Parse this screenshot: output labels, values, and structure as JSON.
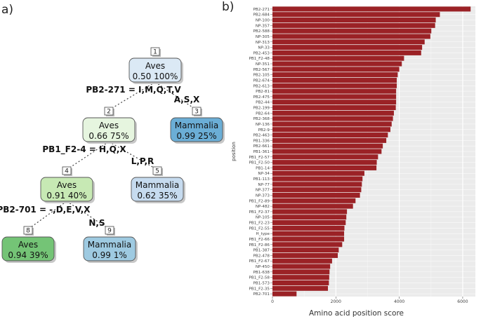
{
  "panels": {
    "a": "a)",
    "b": "b)"
  },
  "tree": {
    "nodes": [
      {
        "id": "1",
        "cls": "Aves",
        "prob": "0.50",
        "pct": "100%",
        "color": "#dbe9f5"
      },
      {
        "id": "2",
        "cls": "Aves",
        "prob": "0.66",
        "pct": "75%",
        "color": "#e6f5df"
      },
      {
        "id": "3",
        "cls": "Mammalia",
        "prob": "0.99",
        "pct": "25%",
        "color": "#6baed6"
      },
      {
        "id": "4",
        "cls": "Aves",
        "prob": "0.91",
        "pct": "40%",
        "color": "#c7e9b4"
      },
      {
        "id": "5",
        "cls": "Mammalia",
        "prob": "0.62",
        "pct": "35%",
        "color": "#c6dbef"
      },
      {
        "id": "8",
        "cls": "Aves",
        "prob": "0.94",
        "pct": "39%",
        "color": "#74c476"
      },
      {
        "id": "9",
        "cls": "Mammalia",
        "prob": "0.99",
        "pct": "1%",
        "color": "#9ecae1"
      }
    ],
    "splits": [
      {
        "left": "PB2-271 = I,M,Q,T,V",
        "right": "A,S,X"
      },
      {
        "left": "PB1_F2-4 = H,Q,X",
        "right": "L,P,R"
      },
      {
        "left": "PB2-701 = -,D,E,V,X",
        "right": "N,S"
      }
    ]
  },
  "chart_data": {
    "type": "bar",
    "orientation": "horizontal",
    "xlabel": "Amino acid position score",
    "ylabel": "position",
    "xlim": [
      0,
      6400
    ],
    "xticks": [
      0,
      2000,
      4000,
      6000
    ],
    "grid": true,
    "bar_color": "#9b2226",
    "categories": [
      "PB2-271",
      "PB2-684",
      "NP-100",
      "NP-357",
      "PB2-588",
      "NP-305",
      "NP-313",
      "NP-33",
      "PB2-453",
      "PB1_F2-48",
      "NP-351",
      "PB2-567",
      "PB2-105",
      "PB2-674",
      "PB2-613",
      "PB2-81",
      "PB2-475",
      "PB2-44",
      "PB2-199",
      "PB2-64",
      "PB2-368",
      "NP-136",
      "PB2-9",
      "PB2-463",
      "PB1-336",
      "PB2-661",
      "PB1-361",
      "PB1_F2-57",
      "PB1_F2-50",
      "PB1-14",
      "NP-34",
      "PB1-113",
      "NP-77",
      "NP-377",
      "NP-373",
      "PB1_F2-89",
      "NP-482",
      "PB1_F2-37",
      "NP-105",
      "PB1_F2-23",
      "PB1_F2-55",
      "H_type",
      "PB1_F2-66",
      "PB1_F2-86",
      "PB1-387",
      "PB2-478",
      "PB1_F2-67",
      "NP-450",
      "PB1-638",
      "PB1_F2-58",
      "PB1-573",
      "PB1_F2-35",
      "PB2-701"
    ],
    "values": [
      6250,
      5280,
      5150,
      5130,
      5010,
      4980,
      4800,
      4720,
      4690,
      4150,
      4080,
      4000,
      3950,
      3920,
      3920,
      3900,
      3900,
      3900,
      3890,
      3830,
      3800,
      3760,
      3720,
      3640,
      3590,
      3480,
      3440,
      3330,
      3290,
      3280,
      2900,
      2840,
      2820,
      2800,
      2760,
      2620,
      2540,
      2350,
      2330,
      2310,
      2270,
      2260,
      2260,
      2200,
      2090,
      2060,
      1880,
      1820,
      1800,
      1790,
      1780,
      1750,
      760
    ]
  }
}
